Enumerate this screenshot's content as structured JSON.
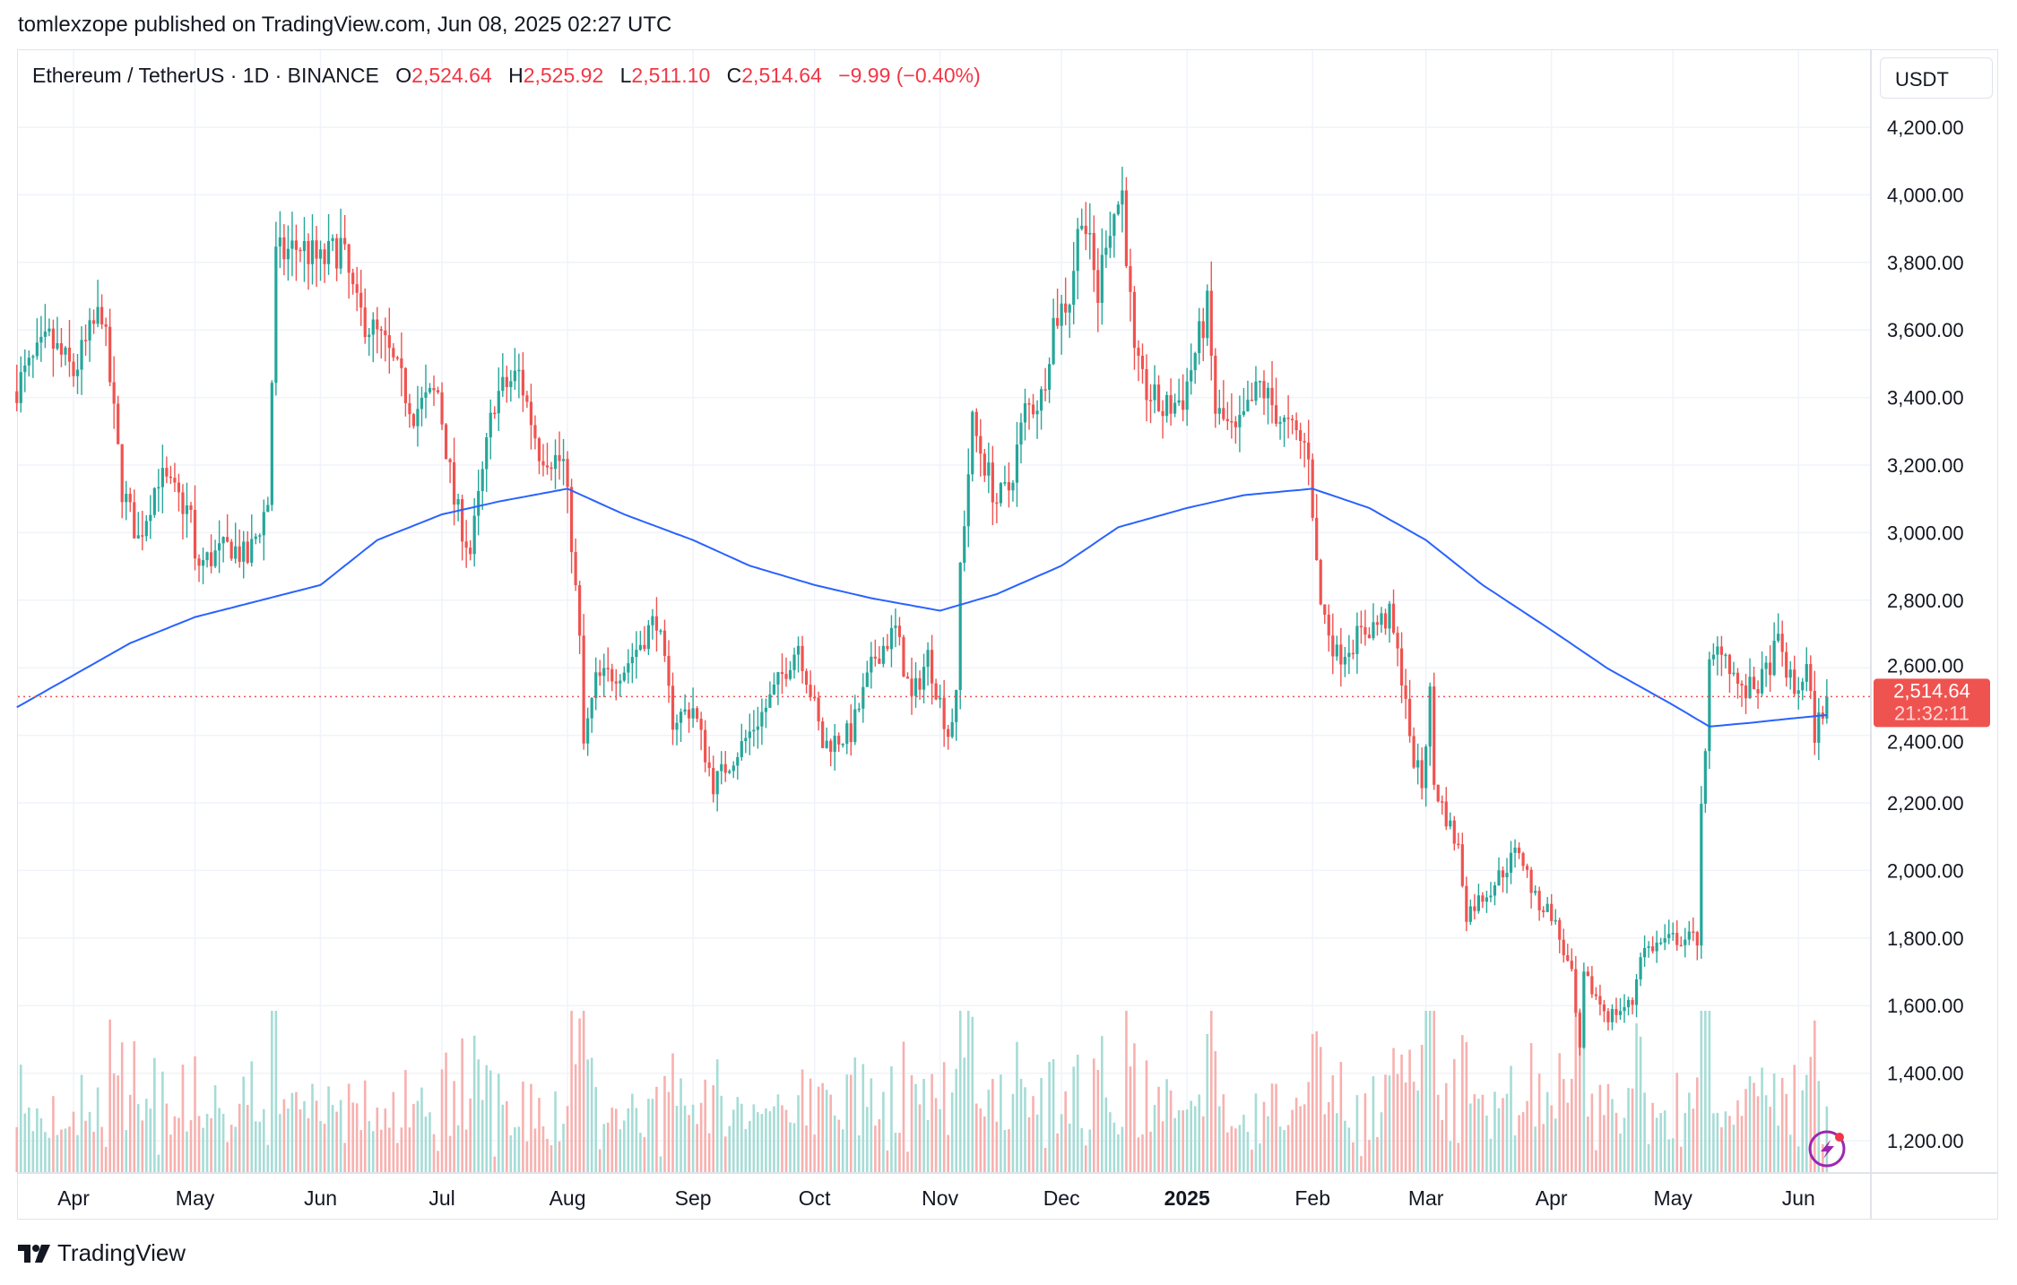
{
  "published": "tomlexzope published on TradingView.com, Jun 08, 2025 02:27 UTC",
  "legend": {
    "symbol": "Ethereum / TetherUS · 1D · BINANCE",
    "o_label": "O",
    "o": "2,524.64",
    "h_label": "H",
    "h": "2,525.92",
    "l_label": "L",
    "l": "2,511.10",
    "c_label": "C",
    "c": "2,514.64",
    "change": "−9.99 (−0.40%)"
  },
  "unit": "USDT",
  "last_price_label": "2,514.64",
  "countdown": "21:32:11",
  "footer_brand": "TradingView",
  "colors": {
    "up": "#26a69a",
    "down": "#ef5350",
    "ma": "#2962ff",
    "price_line": "#ef5350"
  },
  "icons": {
    "alert": "lightning-icon",
    "logo": "tradingview-logo-icon"
  },
  "chart_data": {
    "type": "candlestick",
    "interval": "1D",
    "ylim": [
      1100,
      4300
    ],
    "y_ticks": [
      "4,200.00",
      "4,000.00",
      "3,800.00",
      "3,600.00",
      "3,400.00",
      "3,200.00",
      "3,000.00",
      "2,800.00",
      "2,600.00",
      "2,400.00",
      "2,200.00",
      "2,000.00",
      "1,800.00",
      "1,600.00",
      "1,400.00",
      "1,200.00"
    ],
    "y_tick_values": [
      4200,
      4000,
      3800,
      3600,
      3400,
      3200,
      3000,
      2800,
      2600,
      2400,
      2200,
      2000,
      1800,
      1600,
      1400,
      1200
    ],
    "x_ticks": [
      {
        "label": "Apr",
        "date": "2024-04-01"
      },
      {
        "label": "May",
        "date": "2024-05-01"
      },
      {
        "label": "Jun",
        "date": "2024-06-01"
      },
      {
        "label": "Jul",
        "date": "2024-07-01"
      },
      {
        "label": "Aug",
        "date": "2024-08-01"
      },
      {
        "label": "Sep",
        "date": "2024-09-01"
      },
      {
        "label": "Oct",
        "date": "2024-10-01"
      },
      {
        "label": "Nov",
        "date": "2024-11-01"
      },
      {
        "label": "Dec",
        "date": "2024-12-01"
      },
      {
        "label": "2025",
        "date": "2025-01-01"
      },
      {
        "label": "Feb",
        "date": "2025-02-01"
      },
      {
        "label": "Mar",
        "date": "2025-03-01"
      },
      {
        "label": "Apr",
        "date": "2025-04-01"
      },
      {
        "label": "May",
        "date": "2025-05-01"
      },
      {
        "label": "Jun",
        "date": "2025-06-01"
      }
    ],
    "x_range": [
      "2024-03-18",
      "2025-06-08"
    ],
    "last_close": 2514.64,
    "close_points": [
      [
        "2024-03-18",
        3435
      ],
      [
        "2024-03-26",
        3568
      ],
      [
        "2024-04-01",
        3473
      ],
      [
        "2024-04-08",
        3663
      ],
      [
        "2024-04-13",
        3130
      ],
      [
        "2024-04-17",
        2980
      ],
      [
        "2024-04-22",
        3170
      ],
      [
        "2024-04-30",
        3054
      ],
      [
        "2024-05-01",
        2900
      ],
      [
        "2024-05-10",
        2960
      ],
      [
        "2024-05-14",
        2920
      ],
      [
        "2024-05-19",
        3090
      ],
      [
        "2024-05-21",
        3815
      ],
      [
        "2024-05-27",
        3850
      ],
      [
        "2024-06-01",
        3796
      ],
      [
        "2024-06-06",
        3850
      ],
      [
        "2024-06-10",
        3660
      ],
      [
        "2024-06-17",
        3550
      ],
      [
        "2024-06-24",
        3360
      ],
      [
        "2024-06-30",
        3416
      ],
      [
        "2024-07-04",
        3092
      ],
      [
        "2024-07-08",
        2940
      ],
      [
        "2024-07-14",
        3400
      ],
      [
        "2024-07-20",
        3470
      ],
      [
        "2024-07-25",
        3245
      ],
      [
        "2024-07-31",
        3206
      ],
      [
        "2024-08-02",
        2978
      ],
      [
        "2024-08-04",
        2673
      ],
      [
        "2024-08-05",
        2370
      ],
      [
        "2024-08-08",
        2560
      ],
      [
        "2024-08-15",
        2600
      ],
      [
        "2024-08-23",
        2750
      ],
      [
        "2024-08-27",
        2445
      ],
      [
        "2024-09-01",
        2483
      ],
      [
        "2024-09-06",
        2255
      ],
      [
        "2024-09-13",
        2370
      ],
      [
        "2024-09-19",
        2483
      ],
      [
        "2024-09-27",
        2673
      ],
      [
        "2024-10-01",
        2483
      ],
      [
        "2024-10-03",
        2370
      ],
      [
        "2024-10-10",
        2407
      ],
      [
        "2024-10-16",
        2635
      ],
      [
        "2024-10-21",
        2711
      ],
      [
        "2024-10-25",
        2502
      ],
      [
        "2024-10-29",
        2635
      ],
      [
        "2024-11-03",
        2407
      ],
      [
        "2024-11-05",
        2502
      ],
      [
        "2024-11-06",
        2902
      ],
      [
        "2024-11-09",
        3320
      ],
      [
        "2024-11-12",
        3206
      ],
      [
        "2024-11-15",
        3092
      ],
      [
        "2024-11-18",
        3130
      ],
      [
        "2024-11-22",
        3360
      ],
      [
        "2024-11-26",
        3400
      ],
      [
        "2024-11-29",
        3625
      ],
      [
        "2024-12-03",
        3700
      ],
      [
        "2024-12-06",
        3968
      ],
      [
        "2024-12-10",
        3700
      ],
      [
        "2024-12-12",
        3890
      ],
      [
        "2024-12-16",
        4005
      ],
      [
        "2024-12-19",
        3510
      ],
      [
        "2024-12-21",
        3435
      ],
      [
        "2024-12-26",
        3360
      ],
      [
        "2024-12-31",
        3400
      ],
      [
        "2025-01-06",
        3663
      ],
      [
        "2025-01-08",
        3360
      ],
      [
        "2025-01-13",
        3283
      ],
      [
        "2025-01-19",
        3435
      ],
      [
        "2025-01-25",
        3320
      ],
      [
        "2025-01-31",
        3245
      ],
      [
        "2025-02-02",
        2902
      ],
      [
        "2025-02-03",
        2788
      ],
      [
        "2025-02-07",
        2635
      ],
      [
        "2025-02-14",
        2711
      ],
      [
        "2025-02-20",
        2750
      ],
      [
        "2025-02-24",
        2521
      ],
      [
        "2025-02-25",
        2370
      ],
      [
        "2025-02-28",
        2255
      ],
      [
        "2025-03-02",
        2521
      ],
      [
        "2025-03-03",
        2255
      ],
      [
        "2025-03-09",
        2064
      ],
      [
        "2025-03-11",
        1874
      ],
      [
        "2025-03-17",
        1950
      ],
      [
        "2025-03-24",
        2064
      ],
      [
        "2025-03-28",
        1912
      ],
      [
        "2025-04-01",
        1874
      ],
      [
        "2025-04-06",
        1684
      ],
      [
        "2025-04-08",
        1455
      ],
      [
        "2025-04-09",
        1684
      ],
      [
        "2025-04-15",
        1570
      ],
      [
        "2025-04-21",
        1608
      ],
      [
        "2025-04-23",
        1760
      ],
      [
        "2025-05-01",
        1798
      ],
      [
        "2025-05-07",
        1798
      ],
      [
        "2025-05-08",
        2216
      ],
      [
        "2025-05-09",
        2331
      ],
      [
        "2025-05-10",
        2597
      ],
      [
        "2025-05-13",
        2673
      ],
      [
        "2025-05-18",
        2521
      ],
      [
        "2025-05-23",
        2559
      ],
      [
        "2025-05-27",
        2673
      ],
      [
        "2025-05-31",
        2521
      ],
      [
        "2025-06-03",
        2597
      ],
      [
        "2025-06-05",
        2407
      ],
      [
        "2025-06-08",
        2514.64
      ]
    ],
    "moving_average_points": [
      [
        "2024-03-18",
        2483
      ],
      [
        "2024-04-15",
        2673
      ],
      [
        "2024-05-01",
        2750
      ],
      [
        "2024-06-01",
        2845
      ],
      [
        "2024-06-15",
        2978
      ],
      [
        "2024-07-01",
        3054
      ],
      [
        "2024-07-15",
        3092
      ],
      [
        "2024-08-01",
        3130
      ],
      [
        "2024-08-15",
        3054
      ],
      [
        "2024-09-01",
        2978
      ],
      [
        "2024-09-15",
        2902
      ],
      [
        "2024-10-01",
        2845
      ],
      [
        "2024-10-15",
        2806
      ],
      [
        "2024-11-01",
        2769
      ],
      [
        "2024-11-15",
        2818
      ],
      [
        "2024-12-01",
        2902
      ],
      [
        "2024-12-15",
        3016
      ],
      [
        "2025-01-01",
        3073
      ],
      [
        "2025-01-15",
        3111
      ],
      [
        "2025-02-01",
        3130
      ],
      [
        "2025-02-15",
        3073
      ],
      [
        "2025-03-01",
        2978
      ],
      [
        "2025-03-15",
        2845
      ],
      [
        "2025-04-01",
        2711
      ],
      [
        "2025-04-15",
        2597
      ],
      [
        "2025-05-01",
        2490
      ],
      [
        "2025-05-10",
        2426
      ],
      [
        "2025-05-20",
        2437
      ],
      [
        "2025-06-01",
        2452
      ],
      [
        "2025-06-08",
        2460
      ]
    ],
    "volume_shown": true,
    "grid": true
  }
}
